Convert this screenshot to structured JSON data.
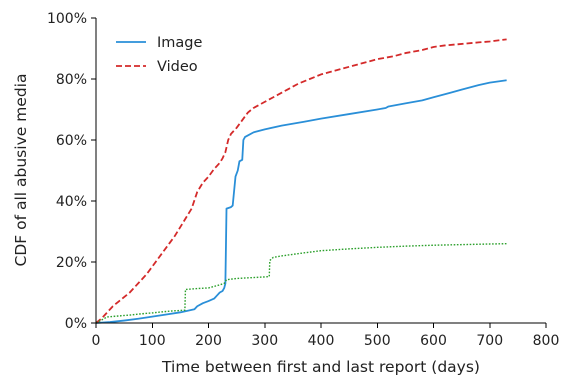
{
  "chart_data": {
    "type": "line",
    "title": "",
    "xlabel": "Time between first and last report (days)",
    "ylabel": "CDF of all abusive media",
    "xlim": [
      0,
      800
    ],
    "ylim": [
      0,
      100
    ],
    "x_ticks": [
      {
        "value": 0,
        "label": "0"
      },
      {
        "value": 100,
        "label": "100"
      },
      {
        "value": 200,
        "label": "200"
      },
      {
        "value": 300,
        "label": "300"
      },
      {
        "value": 400,
        "label": "400"
      },
      {
        "value": 500,
        "label": "500"
      },
      {
        "value": 600,
        "label": "600"
      },
      {
        "value": 700,
        "label": "700"
      },
      {
        "value": 800,
        "label": "800"
      }
    ],
    "y_ticks": [
      {
        "value": 0,
        "label": "0%"
      },
      {
        "value": 20,
        "label": "20%"
      },
      {
        "value": 40,
        "label": "40%"
      },
      {
        "value": 60,
        "label": "60%"
      },
      {
        "value": 80,
        "label": "80%"
      },
      {
        "value": 100,
        "label": "100%"
      }
    ],
    "grid": false,
    "legend_position": "top-left",
    "series": [
      {
        "name": "Image",
        "color": "#2a8fd8",
        "style": "solid",
        "in_legend": true,
        "x": [
          0,
          25,
          50,
          75,
          100,
          125,
          150,
          175,
          180,
          190,
          200,
          210,
          215,
          220,
          225,
          228,
          230,
          231,
          232,
          240,
          243,
          248,
          252,
          255,
          260,
          262,
          265,
          270,
          280,
          300,
          330,
          370,
          400,
          450,
          500,
          515,
          520,
          550,
          580,
          600,
          630,
          650,
          680,
          700,
          730
        ],
        "y": [
          0,
          0.3,
          0.8,
          1.4,
          2.1,
          2.8,
          3.5,
          4.5,
          5.5,
          6.5,
          7.2,
          8.0,
          9.0,
          10.0,
          10.5,
          11.5,
          13.0,
          25.0,
          37.5,
          38.0,
          38.5,
          48.0,
          50.0,
          53.0,
          53.5,
          60.0,
          61.0,
          61.5,
          62.5,
          63.5,
          64.7,
          66.0,
          67.0,
          68.5,
          70.0,
          70.5,
          71.0,
          72.0,
          73.0,
          74.0,
          75.5,
          76.5,
          78.0,
          78.8,
          79.6
        ]
      },
      {
        "name": "Video",
        "color": "#d42a2a",
        "style": "dashed",
        "in_legend": true,
        "x": [
          0,
          10,
          20,
          30,
          40,
          50,
          60,
          70,
          80,
          90,
          100,
          110,
          120,
          130,
          140,
          150,
          160,
          170,
          180,
          190,
          200,
          210,
          220,
          225,
          230,
          235,
          240,
          250,
          260,
          270,
          280,
          300,
          320,
          340,
          360,
          380,
          400,
          420,
          450,
          480,
          500,
          530,
          550,
          580,
          600,
          620,
          650,
          680,
          700,
          730
        ],
        "y": [
          0,
          1.5,
          3.5,
          5.5,
          7.0,
          8.5,
          10.0,
          12.0,
          14.0,
          16.0,
          18.5,
          21.0,
          23.5,
          26.0,
          28.5,
          31.5,
          34.5,
          37.5,
          43.0,
          46.0,
          48.0,
          50.5,
          52.5,
          54.0,
          56.0,
          60.0,
          62.0,
          64.0,
          66.5,
          69.0,
          70.5,
          72.5,
          74.5,
          76.5,
          78.5,
          80.0,
          81.5,
          82.5,
          84.0,
          85.5,
          86.5,
          87.5,
          88.5,
          89.5,
          90.5,
          91.0,
          91.5,
          92.0,
          92.3,
          93.0
        ]
      },
      {
        "name": "",
        "color": "#2ca02c",
        "style": "dotted",
        "in_legend": false,
        "x": [
          0,
          10,
          20,
          40,
          60,
          80,
          100,
          120,
          140,
          158,
          159,
          180,
          200,
          210,
          220,
          228,
          230,
          232,
          250,
          270,
          290,
          308,
          309,
          315,
          330,
          350,
          370,
          400,
          450,
          500,
          550,
          600,
          650,
          700,
          730
        ],
        "y": [
          0,
          1.0,
          2.0,
          2.3,
          2.6,
          3.0,
          3.3,
          3.7,
          4.0,
          4.2,
          11.0,
          11.3,
          11.5,
          12.0,
          12.5,
          13.0,
          13.6,
          14.2,
          14.6,
          14.8,
          15.0,
          15.2,
          20.5,
          21.5,
          22.0,
          22.5,
          23.0,
          23.7,
          24.3,
          24.8,
          25.2,
          25.5,
          25.7,
          25.9,
          26.0
        ]
      }
    ]
  }
}
